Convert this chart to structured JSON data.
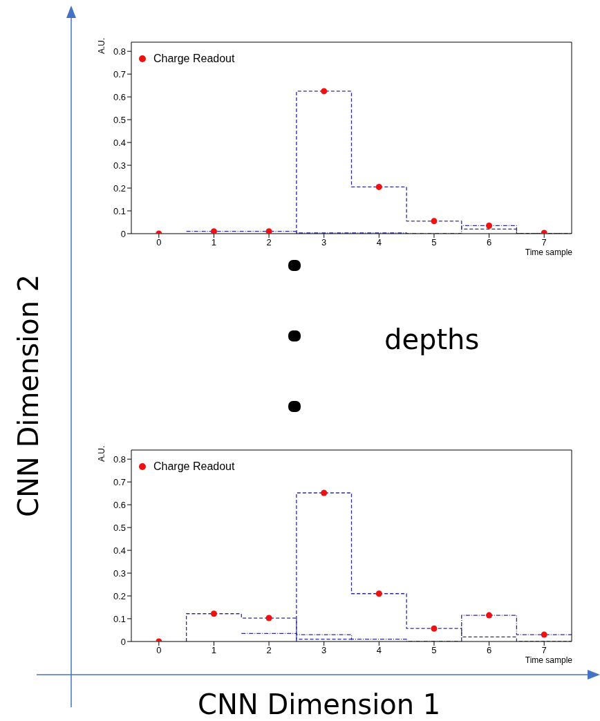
{
  "chart_data": [
    {
      "type": "step",
      "xlabel": "Time sample",
      "ylabel": "A.U.",
      "xlim": [
        -0.5,
        7.5
      ],
      "xticks": [
        0,
        1,
        2,
        3,
        4,
        5,
        6,
        7
      ],
      "ylim": [
        0,
        0.84
      ],
      "yticks": [
        0,
        0.1,
        0.2,
        0.3,
        0.4,
        0.5,
        0.6,
        0.7,
        0.8
      ],
      "legend": "top left",
      "series": [
        {
          "type": "scatter",
          "name": "Charge Readout",
          "color": "#ee1111",
          "marker": "circle",
          "x": [
            0,
            1,
            2,
            3,
            4,
            5,
            6,
            7
          ],
          "values": [
            0,
            0.01,
            0.01,
            0.625,
            0.205,
            0.055,
            0.035,
            0.003
          ]
        },
        {
          "type": "step",
          "color": "#2a2a9a",
          "line_style": "dashed",
          "x": [
            2.5,
            2.5,
            3.5,
            4.5,
            5.5,
            6.5,
            7.5
          ],
          "values": [
            0,
            0.625,
            0.205,
            0.055,
            0.02,
            0,
            0
          ]
        },
        {
          "type": "step",
          "color": "#2a2a9a",
          "line_style": "dotted",
          "x": [
            0.5,
            1.5,
            2.5,
            3.5,
            4.5,
            5.5,
            6.5,
            7.5
          ],
          "values": [
            0.01,
            0.01,
            0.003,
            0.003,
            0,
            0.035,
            0,
            0
          ]
        }
      ]
    },
    {
      "type": "step",
      "xlabel": "Time sample",
      "ylabel": "A.U.",
      "xlim": [
        -0.5,
        7.5
      ],
      "xticks": [
        0,
        1,
        2,
        3,
        4,
        5,
        6,
        7
      ],
      "ylim": [
        0,
        0.84
      ],
      "yticks": [
        0,
        0.1,
        0.2,
        0.3,
        0.4,
        0.5,
        0.6,
        0.7,
        0.8
      ],
      "legend": "top left",
      "series": [
        {
          "type": "scatter",
          "name": "Charge Readout",
          "color": "#ee1111",
          "marker": "circle",
          "x": [
            0,
            1,
            2,
            3,
            4,
            5,
            6,
            7
          ],
          "values": [
            0,
            0.122,
            0.103,
            0.652,
            0.21,
            0.057,
            0.115,
            0.03
          ]
        },
        {
          "type": "step",
          "color": "#2a2a9a",
          "line_style": "dashed",
          "x": [
            2.5,
            2.5,
            3.5,
            4.5,
            5.5,
            6.5,
            7.5
          ],
          "values": [
            0,
            0.652,
            0.21,
            0.057,
            0.02,
            0,
            0
          ]
        },
        {
          "type": "step",
          "color": "#2a2a9a",
          "line_style": "dashed",
          "x": [
            0.5,
            0.5,
            1.5,
            2.5,
            3.5
          ],
          "values": [
            0,
            0.122,
            0.103,
            0.01,
            0.005
          ]
        },
        {
          "type": "step",
          "color": "#2a2a9a",
          "line_style": "dotted",
          "x": [
            1.5,
            2.5,
            3.5,
            4.5,
            5.5,
            5.5,
            6.5,
            7.5
          ],
          "values": [
            0.035,
            0.03,
            0.01,
            0,
            0,
            0.115,
            0.03,
            0.03
          ]
        }
      ]
    },
    {
      "type": "other",
      "xlabel": "CNN Dimension 1",
      "ylabel": "CNN Dimension 2",
      "annotations": [
        "depths"
      ]
    }
  ]
}
